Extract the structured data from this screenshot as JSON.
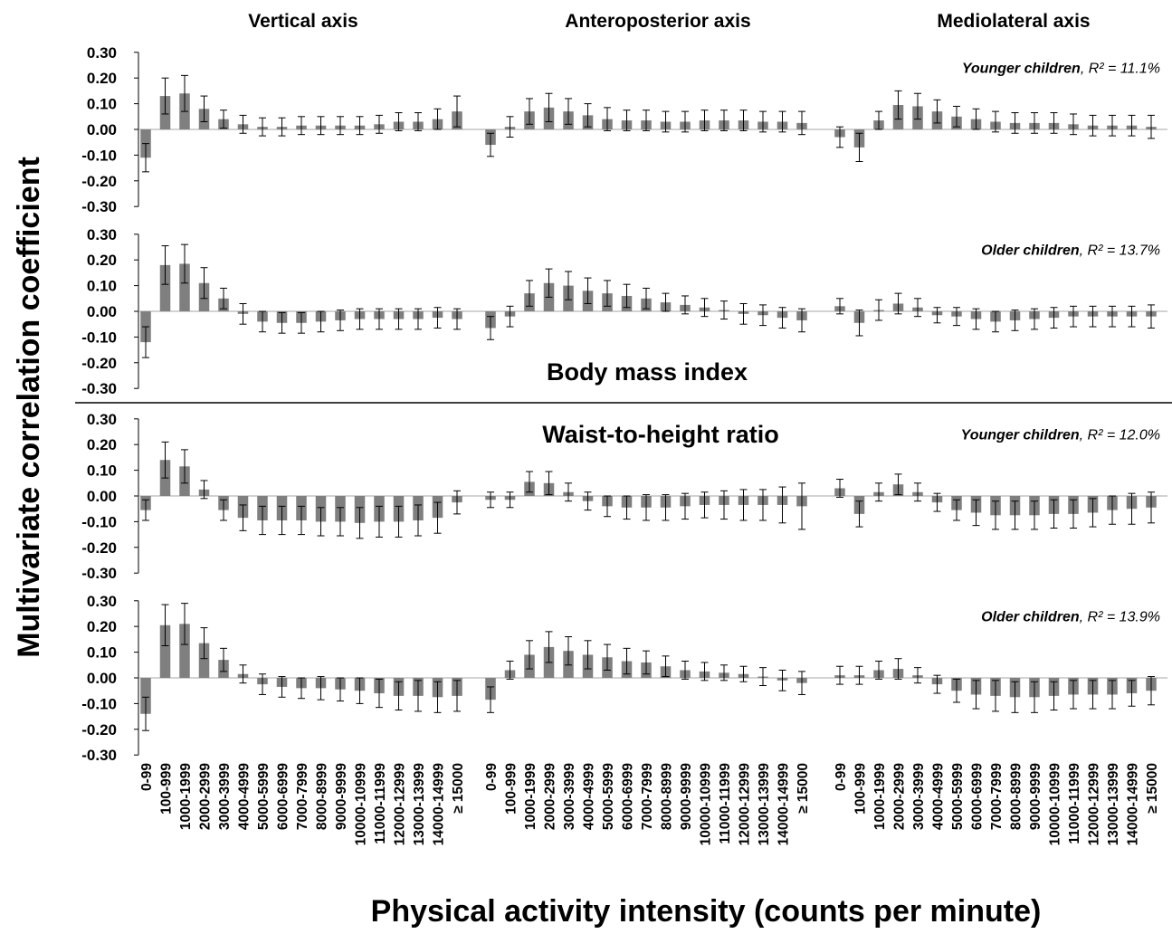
{
  "chart_data": {
    "type": "bar",
    "ylabel": "Multivariate correlation coefficient",
    "xlabel": "Physical activity intensity (counts per minute)",
    "column_titles": [
      "Vertical axis",
      "Anteroposterior axis",
      "Mediolateral axis"
    ],
    "section_labels": [
      "Body mass index",
      "Waist-to-height ratio"
    ],
    "categories": [
      "0-99",
      "100-999",
      "1000-1999",
      "2000-2999",
      "3000-3999",
      "4000-4999",
      "5000-5999",
      "6000-6999",
      "7000-7999",
      "8000-8999",
      "9000-9999",
      "10000-10999",
      "11000-11999",
      "12000-12999",
      "13000-13999",
      "14000-14999",
      "≥ 15000"
    ],
    "ylim": [
      -0.3,
      0.3
    ],
    "yticks": [
      "0.30",
      "0.20",
      "0.10",
      "0.00",
      "-0.10",
      "-0.20",
      "-0.30"
    ],
    "grid": false,
    "bar_color": "#7f7f7f",
    "panels": [
      {
        "group_label": "Younger children",
        "r2_label": ", R² = 11.1%",
        "series": [
          {
            "name": "Vertical axis",
            "values": [
              -0.11,
              0.13,
              0.14,
              0.08,
              0.04,
              0.02,
              0.01,
              0.01,
              0.015,
              0.015,
              0.015,
              0.015,
              0.02,
              0.03,
              0.03,
              0.04,
              0.07
            ],
            "err": [
              0.055,
              0.07,
              0.07,
              0.05,
              0.035,
              0.035,
              0.035,
              0.035,
              0.035,
              0.035,
              0.035,
              0.035,
              0.035,
              0.035,
              0.035,
              0.04,
              0.06
            ]
          },
          {
            "name": "Anteroposterior axis",
            "values": [
              -0.06,
              0.01,
              0.07,
              0.085,
              0.07,
              0.055,
              0.04,
              0.035,
              0.035,
              0.03,
              0.03,
              0.035,
              0.035,
              0.035,
              0.03,
              0.03,
              0.025
            ],
            "err": [
              0.045,
              0.04,
              0.05,
              0.055,
              0.05,
              0.045,
              0.045,
              0.04,
              0.04,
              0.04,
              0.04,
              0.04,
              0.04,
              0.04,
              0.04,
              0.04,
              0.045
            ]
          },
          {
            "name": "Mediolateral axis",
            "values": [
              -0.03,
              -0.07,
              0.035,
              0.095,
              0.09,
              0.07,
              0.05,
              0.04,
              0.03,
              0.025,
              0.025,
              0.025,
              0.02,
              0.015,
              0.015,
              0.015,
              0.01
            ],
            "err": [
              0.04,
              0.055,
              0.035,
              0.055,
              0.05,
              0.045,
              0.04,
              0.04,
              0.04,
              0.04,
              0.04,
              0.04,
              0.04,
              0.04,
              0.04,
              0.04,
              0.045
            ]
          }
        ]
      },
      {
        "group_label": "Older children",
        "r2_label": ", R² = 13.7%",
        "series": [
          {
            "name": "Vertical axis",
            "values": [
              -0.12,
              0.18,
              0.185,
              0.11,
              0.05,
              -0.01,
              -0.04,
              -0.045,
              -0.045,
              -0.04,
              -0.035,
              -0.03,
              -0.03,
              -0.03,
              -0.03,
              -0.025,
              -0.03
            ],
            "err": [
              0.06,
              0.075,
              0.075,
              0.06,
              0.04,
              0.04,
              0.04,
              0.04,
              0.04,
              0.04,
              0.04,
              0.04,
              0.04,
              0.04,
              0.04,
              0.04,
              0.04
            ]
          },
          {
            "name": "Anteroposterior axis",
            "values": [
              -0.065,
              -0.02,
              0.07,
              0.11,
              0.1,
              0.08,
              0.07,
              0.06,
              0.05,
              0.035,
              0.025,
              0.015,
              0.005,
              -0.01,
              -0.015,
              -0.025,
              -0.035
            ],
            "err": [
              0.045,
              0.04,
              0.05,
              0.055,
              0.055,
              0.05,
              0.05,
              0.045,
              0.04,
              0.035,
              0.035,
              0.035,
              0.035,
              0.04,
              0.04,
              0.04,
              0.045
            ]
          },
          {
            "name": "Mediolateral axis",
            "values": [
              0.02,
              -0.045,
              0.005,
              0.03,
              0.015,
              -0.015,
              -0.02,
              -0.03,
              -0.04,
              -0.035,
              -0.03,
              -0.025,
              -0.02,
              -0.02,
              -0.02,
              -0.02,
              -0.02
            ],
            "err": [
              0.03,
              0.05,
              0.04,
              0.04,
              0.035,
              0.03,
              0.035,
              0.04,
              0.04,
              0.04,
              0.04,
              0.04,
              0.04,
              0.04,
              0.04,
              0.04,
              0.045
            ]
          }
        ]
      },
      {
        "group_label": "Younger children",
        "r2_label": ", R² = 12.0%",
        "series": [
          {
            "name": "Vertical axis",
            "values": [
              -0.055,
              0.14,
              0.115,
              0.025,
              -0.055,
              -0.085,
              -0.095,
              -0.095,
              -0.095,
              -0.1,
              -0.1,
              -0.105,
              -0.1,
              -0.1,
              -0.095,
              -0.085,
              -0.025
            ],
            "err": [
              0.04,
              0.07,
              0.065,
              0.035,
              0.04,
              0.05,
              0.055,
              0.055,
              0.055,
              0.055,
              0.055,
              0.06,
              0.06,
              0.06,
              0.06,
              0.06,
              0.045
            ]
          },
          {
            "name": "Anteroposterior axis",
            "values": [
              -0.015,
              -0.015,
              0.055,
              0.05,
              0.015,
              -0.02,
              -0.04,
              -0.045,
              -0.045,
              -0.045,
              -0.04,
              -0.035,
              -0.035,
              -0.035,
              -0.035,
              -0.035,
              -0.04
            ],
            "err": [
              0.03,
              0.03,
              0.04,
              0.045,
              0.035,
              0.035,
              0.04,
              0.045,
              0.05,
              0.05,
              0.05,
              0.05,
              0.055,
              0.06,
              0.06,
              0.07,
              0.09
            ]
          },
          {
            "name": "Mediolateral axis",
            "values": [
              0.03,
              -0.07,
              0.015,
              0.045,
              0.015,
              -0.025,
              -0.055,
              -0.065,
              -0.075,
              -0.075,
              -0.075,
              -0.07,
              -0.07,
              -0.065,
              -0.055,
              -0.05,
              -0.045
            ],
            "err": [
              0.035,
              0.05,
              0.035,
              0.04,
              0.035,
              0.035,
              0.04,
              0.05,
              0.055,
              0.055,
              0.055,
              0.055,
              0.055,
              0.055,
              0.055,
              0.06,
              0.06
            ]
          }
        ]
      },
      {
        "group_label": "Older children",
        "r2_label": ", R² = 13.9%",
        "series": [
          {
            "name": "Vertical axis",
            "values": [
              -0.14,
              0.205,
              0.21,
              0.135,
              0.07,
              0.015,
              -0.025,
              -0.035,
              -0.04,
              -0.04,
              -0.045,
              -0.05,
              -0.06,
              -0.07,
              -0.07,
              -0.075,
              -0.07
            ],
            "err": [
              0.065,
              0.08,
              0.08,
              0.06,
              0.045,
              0.035,
              0.04,
              0.04,
              0.04,
              0.045,
              0.045,
              0.05,
              0.055,
              0.055,
              0.06,
              0.06,
              0.06
            ]
          },
          {
            "name": "Anteroposterior axis",
            "values": [
              -0.085,
              0.03,
              0.09,
              0.12,
              0.105,
              0.09,
              0.08,
              0.065,
              0.06,
              0.045,
              0.03,
              0.025,
              0.02,
              0.015,
              0.005,
              -0.01,
              -0.02
            ],
            "err": [
              0.05,
              0.035,
              0.055,
              0.06,
              0.055,
              0.055,
              0.05,
              0.05,
              0.045,
              0.04,
              0.035,
              0.035,
              0.03,
              0.03,
              0.035,
              0.04,
              0.045
            ]
          },
          {
            "name": "Mediolateral axis",
            "values": [
              0.01,
              0.01,
              0.03,
              0.035,
              0.01,
              -0.025,
              -0.05,
              -0.065,
              -0.07,
              -0.075,
              -0.075,
              -0.07,
              -0.065,
              -0.065,
              -0.065,
              -0.06,
              -0.05
            ],
            "err": [
              0.035,
              0.035,
              0.035,
              0.04,
              0.03,
              0.035,
              0.045,
              0.055,
              0.06,
              0.06,
              0.06,
              0.055,
              0.055,
              0.055,
              0.055,
              0.05,
              0.055
            ]
          }
        ]
      }
    ]
  }
}
